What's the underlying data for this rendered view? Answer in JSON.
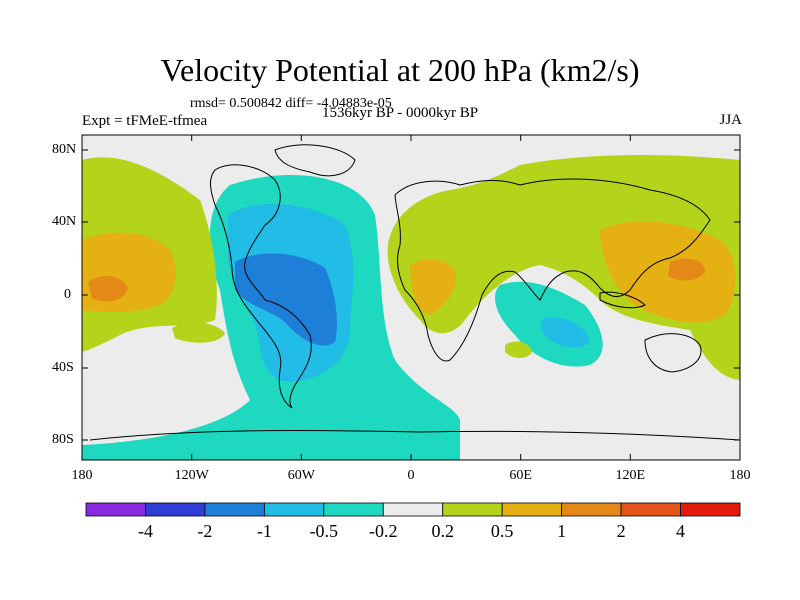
{
  "title": "Velocity Potential at 200 hPa (km2/s)",
  "stats": "rmsd= 0.500842  diff= -4.04883e-05",
  "experiment": "Expt = tFMeE-tfmea",
  "period": "1536kyr BP - 0000kyr BP",
  "season": "JJA",
  "axes": {
    "y_ticks": [
      "80N",
      "40N",
      "0",
      "40S",
      "80S"
    ],
    "x_ticks": [
      "180",
      "120W",
      "60W",
      "0",
      "60E",
      "120E",
      "180"
    ]
  },
  "colorbar": {
    "colors": [
      "#8a2be2",
      "#2e3ed6",
      "#1e7fd8",
      "#22bde6",
      "#1ed8c0",
      "#ececec",
      "#b4d41c",
      "#e4b012",
      "#e48818",
      "#e4541a",
      "#e41a0c"
    ],
    "labels": [
      "-4",
      "-2",
      "-1",
      "-0.5",
      "-0.2",
      "0.2",
      "0.5",
      "1",
      "2",
      "4"
    ]
  },
  "palette": {
    "ocean_bg": "#ececec",
    "coast": "#000000"
  }
}
